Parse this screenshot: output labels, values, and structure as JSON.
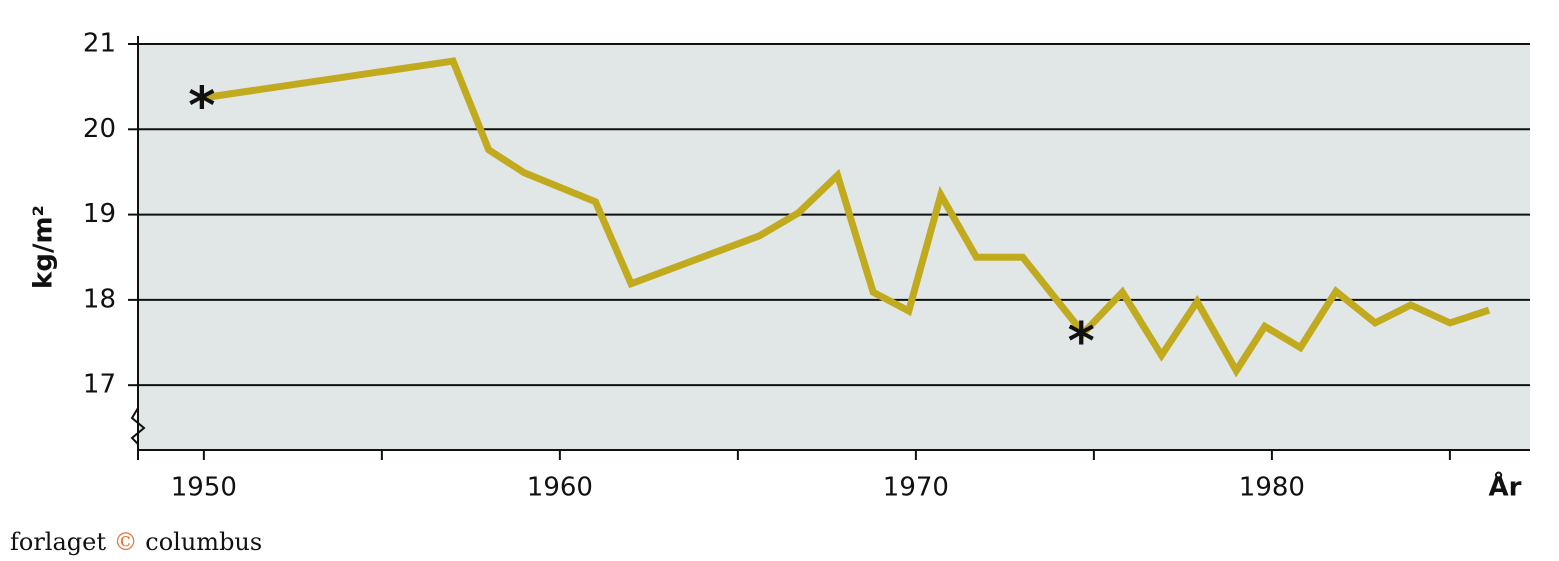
{
  "chart_data": {
    "type": "line",
    "y_label": "kg/m²",
    "x_label": "År",
    "x": [
      1950,
      1957,
      1958,
      1959,
      1961,
      1962,
      1965.6,
      1966.7,
      1967.8,
      1968.8,
      1969.8,
      1970.7,
      1971.7,
      1973.0,
      1974.7,
      1975.8,
      1976.9,
      1977.9,
      1979.0,
      1979.8,
      1980.8,
      1981.8,
      1982.9,
      1983.9,
      1985.0,
      1986.1
    ],
    "series": [
      {
        "color": "#c2aa1f",
        "values": [
          20.37,
          20.8,
          19.76,
          19.49,
          19.15,
          18.19,
          18.75,
          19.02,
          19.46,
          18.09,
          17.87,
          19.23,
          18.5,
          18.5,
          17.61,
          18.09,
          17.35,
          17.98,
          17.17,
          17.69,
          17.44,
          18.1,
          17.73,
          17.94,
          17.73,
          17.88
        ]
      }
    ],
    "marker_symbol": "*",
    "marked_points": [
      0,
      14
    ],
    "xlim": [
      1948.15,
      1987.25
    ],
    "ylim": [
      16.24,
      21
    ],
    "xticks": [
      1950,
      1960,
      1970,
      1980
    ],
    "x_minor_ticks": [
      1955,
      1965,
      1975,
      1985
    ],
    "yticks": [
      17,
      18,
      19,
      20,
      21
    ],
    "grid": true,
    "background": "#e1e6e6",
    "credit": [
      "forlaget",
      "©",
      "columbus"
    ]
  }
}
